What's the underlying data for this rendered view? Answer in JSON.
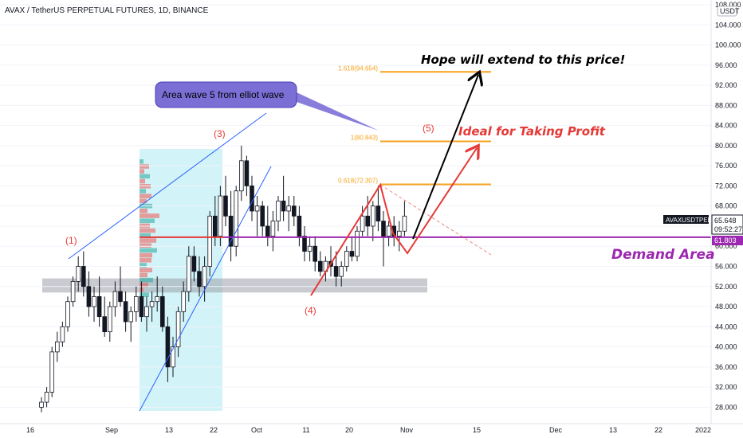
{
  "header": {
    "symbol_line": "AVAX / TetherUS PERPETUAL FUTURES, 1D, BINANCE"
  },
  "colors": {
    "up": "#ffffff",
    "down": "#131722",
    "wave_blue": "#2962ff",
    "demand": "#9c27b0",
    "fib": "#f7a21b",
    "zone_red": "#e53935",
    "box_cyan": "#7fdce9",
    "grey_zone": "#9598a1"
  },
  "chart_data": {
    "type": "candlestick",
    "title": "AVAX / TetherUS PERPETUAL FUTURES, 1D, BINANCE",
    "ylim": [
      26,
      108
    ],
    "y_ticks": [
      "108.000",
      "104.000",
      "100.000",
      "96.000",
      "92.000",
      "88.000",
      "84.000",
      "80.000",
      "76.000",
      "72.000",
      "68.000",
      "64.000",
      "60.000",
      "56.000",
      "52.000",
      "48.000",
      "44.000",
      "40.000",
      "36.000",
      "32.000",
      "28.000"
    ],
    "currency": "USDT",
    "x_ticks": [
      "16",
      "Sep",
      "13",
      "22",
      "Oct",
      "11",
      "20",
      "Nov",
      "15",
      "Dec",
      "13",
      "22",
      "2022"
    ],
    "ohlc": [
      [
        28,
        30,
        27,
        29
      ],
      [
        29,
        32,
        28,
        31
      ],
      [
        31,
        40,
        30,
        39
      ],
      [
        39,
        43,
        37,
        41
      ],
      [
        41,
        45,
        40,
        44
      ],
      [
        44,
        50,
        43,
        49
      ],
      [
        49,
        54,
        48,
        53
      ],
      [
        53,
        58,
        51,
        56
      ],
      [
        56,
        59,
        50,
        52
      ],
      [
        52,
        55,
        46,
        48
      ],
      [
        48,
        52,
        45,
        50
      ],
      [
        50,
        54,
        44,
        46
      ],
      [
        46,
        50,
        42,
        43
      ],
      [
        43,
        49,
        41,
        48
      ],
      [
        48,
        53,
        46,
        51
      ],
      [
        51,
        56,
        48,
        49
      ],
      [
        49,
        51,
        43,
        45
      ],
      [
        45,
        48,
        41,
        47
      ],
      [
        47,
        52,
        45,
        50
      ],
      [
        50,
        53,
        45,
        46
      ],
      [
        46,
        50,
        43,
        48
      ],
      [
        48,
        51,
        45,
        49
      ],
      [
        49,
        54,
        47,
        50
      ],
      [
        50,
        52,
        43,
        44
      ],
      [
        44,
        46,
        33,
        36
      ],
      [
        36,
        42,
        34,
        40
      ],
      [
        40,
        48,
        38,
        47
      ],
      [
        47,
        53,
        45,
        51
      ],
      [
        51,
        60,
        49,
        58
      ],
      [
        58,
        60,
        53,
        55
      ],
      [
        55,
        58,
        50,
        52
      ],
      [
        52,
        58,
        49,
        56
      ],
      [
        56,
        67,
        54,
        66
      ],
      [
        66,
        70,
        60,
        62
      ],
      [
        62,
        72,
        60,
        70
      ],
      [
        70,
        74,
        64,
        66
      ],
      [
        66,
        71,
        57,
        60
      ],
      [
        60,
        72,
        58,
        71
      ],
      [
        71,
        80,
        69,
        77
      ],
      [
        77,
        78,
        70,
        72
      ],
      [
        72,
        74,
        65,
        67
      ],
      [
        67,
        70,
        62,
        68
      ],
      [
        68,
        69,
        62,
        64
      ],
      [
        64,
        68,
        60,
        62
      ],
      [
        62,
        67,
        59,
        65
      ],
      [
        65,
        70,
        63,
        69
      ],
      [
        69,
        74,
        65,
        67
      ],
      [
        67,
        70,
        63,
        68
      ],
      [
        68,
        70,
        64,
        66
      ],
      [
        66,
        68,
        60,
        62
      ],
      [
        62,
        64,
        57,
        59
      ],
      [
        59,
        62,
        57,
        60
      ],
      [
        60,
        62,
        55,
        57
      ],
      [
        57,
        59,
        54,
        55
      ],
      [
        55,
        58,
        53,
        57
      ],
      [
        57,
        60,
        54,
        56
      ],
      [
        56,
        59,
        52,
        54
      ],
      [
        54,
        57,
        52,
        56
      ],
      [
        56,
        60,
        55,
        59
      ],
      [
        59,
        62,
        57,
        58
      ],
      [
        58,
        64,
        57,
        63
      ],
      [
        63,
        68,
        62,
        66
      ],
      [
        66,
        70,
        62,
        64
      ],
      [
        64,
        69,
        61,
        68
      ],
      [
        68,
        72,
        63,
        65
      ],
      [
        65,
        67,
        56,
        62
      ],
      [
        62,
        65,
        60,
        64
      ],
      [
        64,
        66,
        60,
        62
      ],
      [
        62,
        65,
        59,
        63
      ],
      [
        63,
        69,
        62,
        66
      ]
    ],
    "horizontal_levels": [
      {
        "label": "1.618(94.654)",
        "value": 94.654
      },
      {
        "label": "1(80.843)",
        "value": 80.843
      },
      {
        "label": "0.618(72.307)",
        "value": 72.307
      }
    ],
    "demand_level": 61.803,
    "demand_label": "61.803",
    "last_price_label": "65.648",
    "countdown_label": "09:52:27",
    "ticker_label": "AVAXUSDTPERP"
  },
  "annotations": {
    "wave1": "(1)",
    "wave3": "(3)",
    "wave4": "(4)",
    "wave5": "(5)",
    "callout": "Area wave 5 from elliot wave",
    "hope": "Hope will extend to this price!",
    "ideal": "Ideal for Taking Profit",
    "demand": "Demand Area"
  }
}
